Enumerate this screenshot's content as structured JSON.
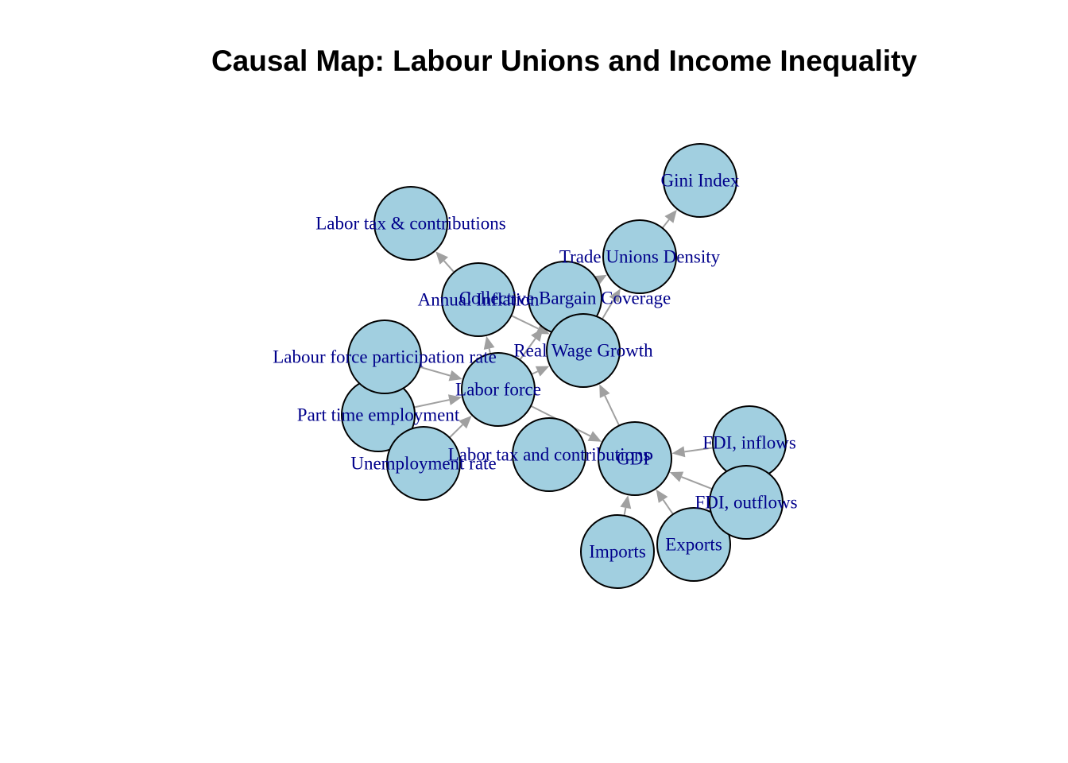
{
  "title": "Causal Map: Labour Unions and Income Inequality",
  "colors": {
    "node_fill": "#a1cfe0",
    "node_border": "#000000",
    "edge": "#a0a0a0",
    "label": "#00008b"
  },
  "nodes": [
    {
      "id": "gini",
      "label": "Gini Index"
    },
    {
      "id": "labtax_contrib",
      "label": "Labor tax & contributions"
    },
    {
      "id": "unions",
      "label": "Trade Unions Density"
    },
    {
      "id": "inflation",
      "label": "Annual Inflation"
    },
    {
      "id": "bargain",
      "label": "Collective Bargain Coverage"
    },
    {
      "id": "lfpr",
      "label": "Labour force participation rate"
    },
    {
      "id": "realwage",
      "label": "Real Wage Growth"
    },
    {
      "id": "laborforce",
      "label": "Labor force"
    },
    {
      "id": "parttime",
      "label": "Part time employment"
    },
    {
      "id": "unemp",
      "label": "Unemployment rate"
    },
    {
      "id": "labtax",
      "label": "Labor tax and contributions"
    },
    {
      "id": "gdp",
      "label": "GDP"
    },
    {
      "id": "fdi_in",
      "label": "FDI, inflows"
    },
    {
      "id": "fdi_out",
      "label": "FDI, outflows"
    },
    {
      "id": "imports",
      "label": "Imports"
    },
    {
      "id": "exports",
      "label": "Exports"
    }
  ],
  "edges": [
    {
      "from": "unions",
      "to": "gini"
    },
    {
      "from": "inflation",
      "to": "labtax_contrib"
    },
    {
      "from": "bargain",
      "to": "unions"
    },
    {
      "from": "realwage",
      "to": "unions"
    },
    {
      "from": "inflation",
      "to": "realwage"
    },
    {
      "from": "laborforce",
      "to": "inflation"
    },
    {
      "from": "laborforce",
      "to": "bargain"
    },
    {
      "from": "laborforce",
      "to": "realwage"
    },
    {
      "from": "lfpr",
      "to": "laborforce"
    },
    {
      "from": "parttime",
      "to": "laborforce"
    },
    {
      "from": "unemp",
      "to": "laborforce"
    },
    {
      "from": "laborforce",
      "to": "gdp"
    },
    {
      "from": "gdp",
      "to": "realwage"
    },
    {
      "from": "fdi_in",
      "to": "gdp"
    },
    {
      "from": "fdi_out",
      "to": "gdp"
    },
    {
      "from": "imports",
      "to": "gdp"
    },
    {
      "from": "exports",
      "to": "gdp"
    }
  ]
}
